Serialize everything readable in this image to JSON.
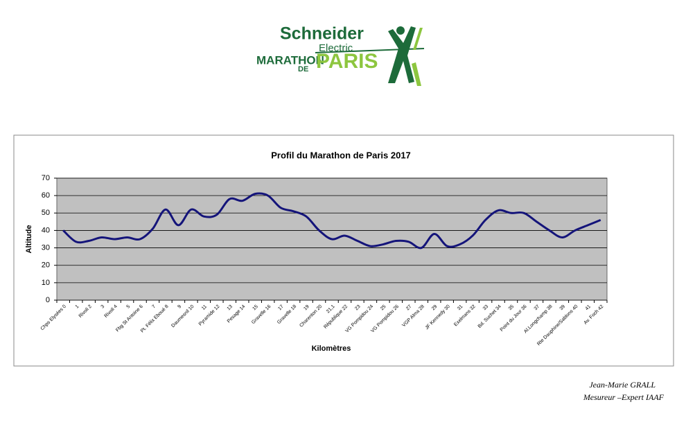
{
  "logo": {
    "brand": "Schneider",
    "sub": "Electric",
    "event": "MARATHON",
    "de": "DE",
    "city": "PARIS"
  },
  "chart_data": {
    "type": "line",
    "title": "Profil du Marathon de Paris 2017",
    "x_label": "Kilomètres",
    "y_label": "Altitude",
    "categories": [
      "Chps Elysées 0",
      "1",
      "Rivoli  2",
      "3",
      "Rivoli  4",
      "5",
      "Fbg St Antoine 6",
      "7",
      "Pt. Félix Eboué 8",
      "9",
      "Daumesnil 10",
      "11",
      "Pyramide  12",
      "13",
      "Pesage 14",
      "15",
      "Gravelle 16",
      "17",
      "Gravelle 18",
      "19",
      "Charenton 20",
      "21,1",
      "République 22",
      "23",
      "VG Pompidou 24",
      "25",
      "VG Pompidou 26",
      "27",
      "VGP Alma 28",
      "29",
      "JF Kennedy 30",
      "31",
      "Exelmans 32",
      "33",
      "Bd. Suchet 34",
      "35",
      "Point du Jour 36",
      "37",
      "Al.Longchamp 38",
      "39",
      "Rte Dauphine/Sablons 40",
      "41",
      "Av. Foch  42"
    ],
    "values": [
      40,
      33.5,
      34,
      36,
      35,
      36,
      35,
      41,
      52,
      43,
      52,
      48,
      49,
      58,
      57,
      61,
      60,
      53,
      51,
      48,
      40,
      35,
      37,
      34,
      31,
      32,
      34,
      33.5,
      30,
      38,
      31,
      32,
      37,
      46,
      51.5,
      50,
      50,
      45,
      40,
      36,
      40,
      43,
      46
    ],
    "color": "#14147a",
    "ylim": [
      0,
      70
    ],
    "yticks": [
      0,
      10,
      20,
      30,
      40,
      50,
      60,
      70
    ],
    "grid": true
  },
  "footer": {
    "author": "Jean-Marie GRALL",
    "role": "Mesureur –Expert IAAF"
  }
}
